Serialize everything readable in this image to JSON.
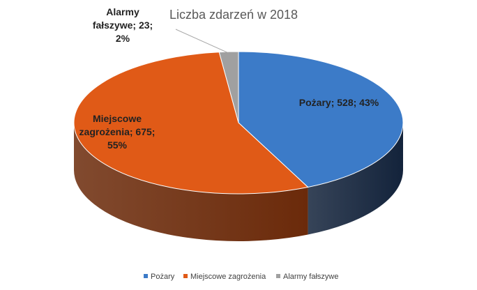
{
  "chart_data": {
    "type": "pie",
    "title": "Liczba zdarzeń w 2018",
    "legend_position": "bottom",
    "slices": [
      {
        "name": "Pożary",
        "value": 528,
        "percent": 43,
        "color": "#3c7bc8",
        "side_color": "#13233b",
        "label_lines": [
          "Pożary; 528; 43%"
        ]
      },
      {
        "name": "Miejscowe zagrożenia",
        "value": 675,
        "percent": 55,
        "color": "#e05a17",
        "side_color": "#6b2a0a",
        "label_lines": [
          "Miejscowe",
          "zagrożenia; 675;",
          "55%"
        ]
      },
      {
        "name": "Alarmy fałszywe",
        "value": 23,
        "percent": 2,
        "color": "#a0a0a0",
        "side_color": "#4a4a4a",
        "label_lines": [
          "Alarmy",
          "fałszywe; 23;",
          "2%"
        ]
      }
    ]
  }
}
